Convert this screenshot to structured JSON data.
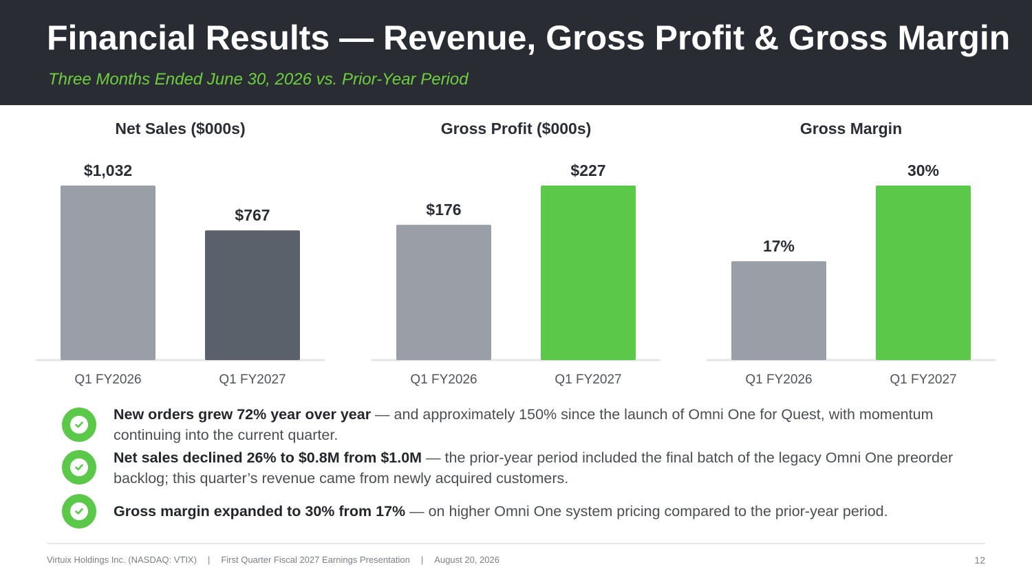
{
  "header": {
    "title": "Financial Results — Revenue, Gross Profit & Gross Margin",
    "subtitle": "Three Months Ended June 30, 2026 vs. Prior-Year Period"
  },
  "colors": {
    "header_bg": "#292c33",
    "accent_green": "#5cc84a",
    "prior_year_gray": "#9a9ea6",
    "dark_gray": "#5a616b",
    "baseline": "#e3e4e6"
  },
  "chart_data": [
    {
      "type": "bar",
      "title": "Net Sales  ($000s)",
      "categories": [
        "Q1 FY2026",
        "Q1 FY2027"
      ],
      "values": [
        1032,
        767
      ],
      "labels": [
        "$1,032",
        "$767"
      ],
      "colors": [
        "#9a9ea6",
        "#5a616b"
      ],
      "ylim": [
        0,
        1032
      ],
      "grid": false,
      "legend": "none"
    },
    {
      "type": "bar",
      "title": "Gross Profit  ($000s)",
      "categories": [
        "Q1 FY2026",
        "Q1 FY2027"
      ],
      "values": [
        176,
        227
      ],
      "labels": [
        "$176",
        "$227"
      ],
      "colors": [
        "#9a9ea6",
        "#5cc84a"
      ],
      "ylim": [
        0,
        227
      ],
      "grid": false,
      "legend": "none"
    },
    {
      "type": "bar",
      "title": "Gross Margin",
      "categories": [
        "Q1 FY2026",
        "Q1 FY2027"
      ],
      "values": [
        17,
        30
      ],
      "labels": [
        "17%",
        "30%"
      ],
      "colors": [
        "#9a9ea6",
        "#5cc84a"
      ],
      "ylim": [
        0,
        30
      ],
      "grid": false,
      "legend": "none"
    }
  ],
  "bullets": [
    {
      "icon": "check-circle-icon",
      "bold": "New orders grew 72% year over year",
      "text": " — and approximately 150% since the launch of Omni One for Quest, with momentum continuing into the current quarter."
    },
    {
      "icon": "check-circle-icon",
      "bold": "Net sales declined 26% to $0.8M from $1.0M",
      "text": " — the prior-year period included the final batch of the legacy Omni One preorder backlog; this quarter’s revenue came from newly acquired customers."
    },
    {
      "icon": "check-circle-icon",
      "bold": "Gross margin expanded to 30% from 17%",
      "text": " — on higher Omni One system pricing compared to the prior-year period."
    }
  ],
  "footer": {
    "company": "Virtuix Holdings Inc. (NASDAQ: VTIX)",
    "separator": "|",
    "presentation": "First Quarter Fiscal 2027 Earnings Presentation",
    "date": "August 20, 2026",
    "page": "12"
  }
}
